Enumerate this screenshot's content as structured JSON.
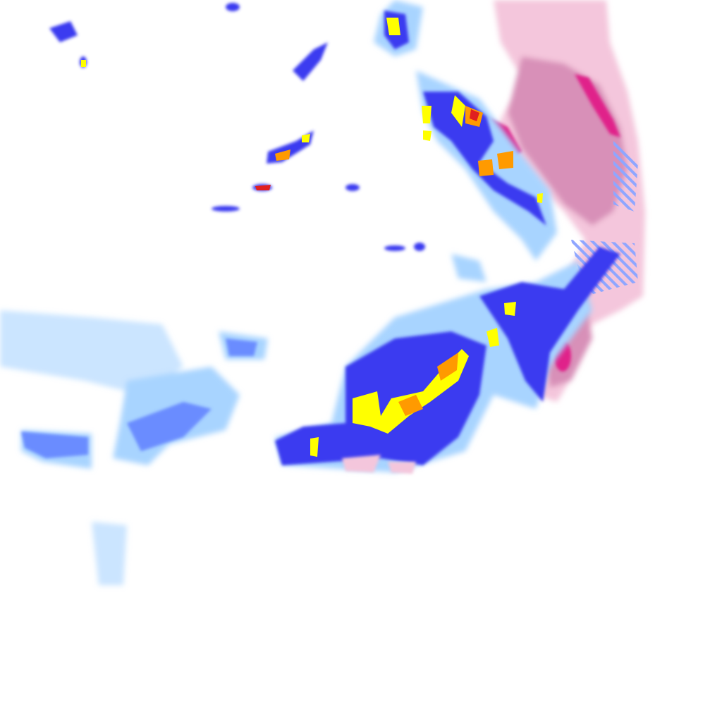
{
  "map": {
    "layer": "precipitation-radar",
    "colors": {
      "background": "#ffffff",
      "rain_light": "#a8d4ff",
      "rain_moderate": "#6a8cff",
      "rain_heavy": "#3a3af0",
      "rain_very_heavy": "#ffff00",
      "rain_intense": "#ff9a00",
      "rain_extreme": "#e02020",
      "snow_light": "#f4c6dc",
      "snow_moderate": "#d890b8",
      "snow_heavy": "#e0208a",
      "mixed_hatch": "#8fa6ff"
    }
  }
}
